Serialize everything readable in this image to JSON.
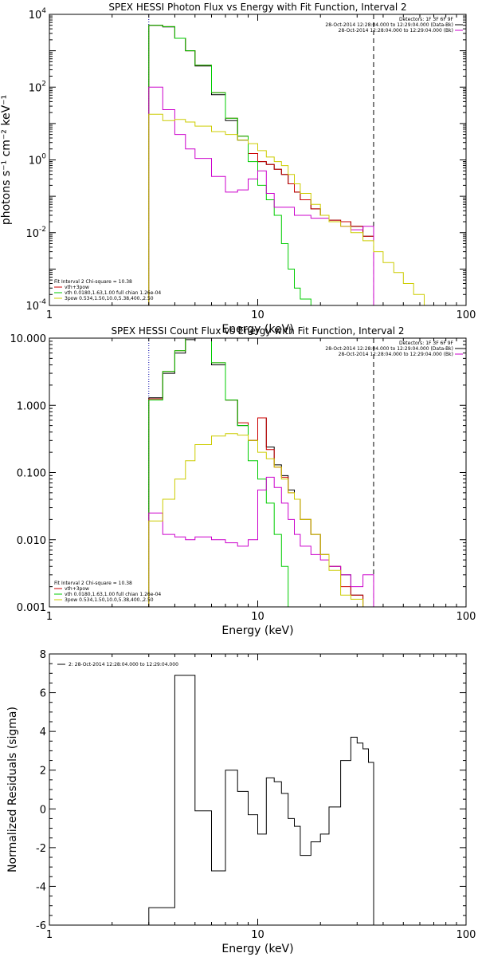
{
  "chart_data": [
    {
      "type": "line",
      "title": "SPEX HESSI Photon Flux vs Energy with Fit Function, Interval 2",
      "xlabel": "Energy (keV)",
      "ylabel": "photons s⁻¹ cm⁻² keV⁻¹",
      "xscale": "log",
      "yscale": "log",
      "xlim": [
        1,
        100
      ],
      "ylim": [
        0.0001,
        10000
      ],
      "x_ticks": [
        {
          "v": 1,
          "label": "1"
        },
        {
          "v": 10,
          "label": "10"
        },
        {
          "v": 100,
          "label": "100"
        }
      ],
      "y_ticks": [
        {
          "v": 0.0001,
          "base": "10",
          "exp": "-4"
        },
        {
          "v": 0.01,
          "base": "10",
          "exp": "-2"
        },
        {
          "v": 1,
          "base": "10",
          "exp": "0"
        },
        {
          "v": 100,
          "base": "10",
          "exp": "2"
        },
        {
          "v": 10000,
          "base": "10",
          "exp": "4"
        }
      ],
      "dashed_vline": 36,
      "dotted_vline": 3,
      "legend_topright": [
        {
          "text": "Detectors: 1F 3F 6F 9F",
          "color": ""
        },
        {
          "text": "28-Oct-2014 12:28:04.000 to 12:29:04.000 (Data-Bk)",
          "color": "#000000"
        },
        {
          "text": "28-Oct-2014 12:28:04.000 to 12:29:04.000 (Bk)",
          "color": "#cc00cc"
        }
      ],
      "legend_bottomleft": [
        {
          "text": "Fit Interval 2   Chi-square = 10.38",
          "color": ""
        },
        {
          "text": "vth+3pow",
          "color": "#cc0000"
        },
        {
          "text": "vth 0.0180,1.63,1.00  full chian 1.26e-04",
          "color": "#00cc00"
        },
        {
          "text": "3pow 0.534,1.50,10.0,5.38,400.,2.50",
          "color": "#cccc00"
        }
      ],
      "bin_edges": [
        3,
        3.5,
        4,
        4.5,
        5,
        6,
        7,
        8,
        9,
        10,
        11,
        12,
        13,
        14,
        15,
        16,
        18,
        20,
        22,
        25,
        28,
        32,
        36
      ],
      "series": [
        {
          "color": "#000000",
          "values": [
            5000,
            4500,
            2200,
            1000,
            380,
            62,
            12,
            3.5,
            1.5,
            0.9,
            0.75,
            0.55,
            0.4,
            0.22,
            0.13,
            0.08,
            0.045,
            0.03,
            0.022,
            0.02,
            0.015,
            0.008
          ]
        },
        {
          "color": "#cc0000",
          "values": [
            5000,
            4600,
            2200,
            1000,
            400,
            70,
            14,
            4.5,
            1.5,
            0.9,
            0.75,
            0.55,
            0.4,
            0.22,
            0.13,
            0.08,
            0.045,
            0.03,
            0.022,
            0.02,
            0.015,
            0.008
          ]
        },
        {
          "color": "#00cc00",
          "values": [
            5000,
            4600,
            2200,
            1000,
            400,
            70,
            14,
            4.5,
            0.9,
            0.2,
            0.08,
            0.03,
            0.005,
            0.001,
            0.0003,
            0.00015
          ]
        },
        {
          "color": "#cc00cc",
          "values": [
            100,
            24,
            5,
            2,
            1.1,
            0.35,
            0.13,
            0.15,
            0.3,
            0.5,
            0.12,
            0.05,
            0.05,
            0.05,
            0.03,
            0.03,
            0.025,
            0.025,
            0.02,
            0.015,
            0.012,
            0.015
          ]
        },
        {
          "color": "#cccc00",
          "bin_edges": [
            3,
            3.5,
            4,
            4.5,
            5,
            6,
            7,
            8,
            9,
            10,
            11,
            12,
            13,
            14,
            15,
            16,
            18,
            20,
            22,
            25,
            28,
            32,
            36,
            40,
            45,
            50,
            56,
            63
          ],
          "values": [
            18,
            12,
            13,
            11,
            8.5,
            6,
            5,
            3.5,
            2.8,
            1.8,
            1.2,
            0.9,
            0.7,
            0.4,
            0.22,
            0.12,
            0.06,
            0.03,
            0.02,
            0.015,
            0.01,
            0.006,
            0.003,
            0.0015,
            0.0008,
            0.0004,
            0.0002
          ]
        }
      ]
    },
    {
      "type": "line",
      "title": "SPEX HESSI Count Flux vs Energy with Fit Function, Interval 2",
      "xlabel": "Energy (keV)",
      "ylabel": "",
      "xscale": "log",
      "yscale": "log",
      "xlim": [
        1,
        100
      ],
      "ylim": [
        0.001,
        10
      ],
      "x_ticks": [
        {
          "v": 1,
          "label": "1"
        },
        {
          "v": 10,
          "label": "10"
        },
        {
          "v": 100,
          "label": "100"
        }
      ],
      "y_ticks": [
        {
          "v": 0.001,
          "label": "0.001"
        },
        {
          "v": 0.01,
          "label": "0.010"
        },
        {
          "v": 0.1,
          "label": "0.100"
        },
        {
          "v": 1,
          "label": "1.000"
        },
        {
          "v": 10,
          "label": "10.000"
        }
      ],
      "dashed_vline": 36,
      "dotted_vline": 3,
      "legend_topright": [
        {
          "text": "Detectors: 1F 3F 6F 9F",
          "color": ""
        },
        {
          "text": "28-Oct-2014 12:28:04.000 to 12:29:04.000 (Data-Bk)",
          "color": "#000000"
        },
        {
          "text": "28-Oct-2014 12:28:04.000 to 12:29:04.000 (Bk)",
          "color": "#cc00cc"
        }
      ],
      "legend_bottomleft": [
        {
          "text": "Fit Interval 2   Chi-square = 10.38",
          "color": ""
        },
        {
          "text": "vth+3pow",
          "color": "#cc0000"
        },
        {
          "text": "vth 0.0180,1.63,1.00  full chian 1.26e-04",
          "color": "#00cc00"
        },
        {
          "text": "3pow 0.534,1.50,10.0,5.38,400.,2.50",
          "color": "#cccc00"
        }
      ],
      "bin_edges": [
        3,
        3.5,
        4,
        4.5,
        5,
        6,
        7,
        8,
        9,
        10,
        11,
        12,
        13,
        14,
        15,
        16,
        18,
        20,
        22,
        25,
        28,
        32,
        36
      ],
      "series": [
        {
          "color": "#000000",
          "values": [
            1.3,
            3,
            6,
            9.5,
            11,
            4,
            1.2,
            0.5,
            0.3,
            0.65,
            0.24,
            0.13,
            0.09,
            0.055,
            0.04,
            0.02,
            0.012,
            0.006,
            0.004,
            0.003,
            0.0015,
            0.001
          ]
        },
        {
          "color": "#cc0000",
          "values": [
            1.25,
            3.2,
            6.5,
            10,
            11.5,
            4.3,
            1.2,
            0.55,
            0.3,
            0.65,
            0.22,
            0.12,
            0.085,
            0.05,
            0.04,
            0.02,
            0.012,
            0.006,
            0.004,
            0.002,
            0.0015,
            0.001
          ]
        },
        {
          "color": "#00cc00",
          "values": [
            1.2,
            3.2,
            6.5,
            10,
            11.5,
            4.3,
            1.2,
            0.5,
            0.15,
            0.08,
            0.035,
            0.012,
            0.004,
            0.001
          ]
        },
        {
          "color": "#cc00cc",
          "values": [
            0.025,
            0.012,
            0.011,
            0.01,
            0.011,
            0.01,
            0.009,
            0.008,
            0.01,
            0.055,
            0.085,
            0.06,
            0.035,
            0.02,
            0.012,
            0.008,
            0.006,
            0.005,
            0.004,
            0.003,
            0.002,
            0.003
          ]
        },
        {
          "color": "#cccc00",
          "values": [
            0.019,
            0.04,
            0.08,
            0.15,
            0.26,
            0.35,
            0.38,
            0.36,
            0.3,
            0.2,
            0.16,
            0.12,
            0.08,
            0.05,
            0.04,
            0.02,
            0.012,
            0.006,
            0.0035,
            0.0015,
            0.0013,
            0.001
          ]
        }
      ]
    },
    {
      "type": "line",
      "title": "",
      "xlabel": "Energy (keV)",
      "ylabel": "Normalized Residuals (sigma)",
      "xscale": "log",
      "yscale": "linear",
      "xlim": [
        1,
        100
      ],
      "ylim": [
        -6,
        8
      ],
      "x_ticks": [
        {
          "v": 1,
          "label": "1"
        },
        {
          "v": 10,
          "label": "10"
        },
        {
          "v": 100,
          "label": "100"
        }
      ],
      "y_ticks": [
        {
          "v": -6,
          "label": "-6"
        },
        {
          "v": -4,
          "label": "-4"
        },
        {
          "v": -2,
          "label": "-2"
        },
        {
          "v": 0,
          "label": "0"
        },
        {
          "v": 2,
          "label": "2"
        },
        {
          "v": 4,
          "label": "4"
        },
        {
          "v": 6,
          "label": "6"
        },
        {
          "v": 8,
          "label": "8"
        }
      ],
      "legend_topleft": [
        {
          "text": "2: 28-Oct-2014 12:28:04.000 to 12:29:04.000",
          "color": "#000000"
        }
      ],
      "bin_edges": [
        3,
        4,
        5,
        6,
        7,
        8,
        9,
        10,
        11,
        12,
        13,
        14,
        15,
        16,
        18,
        20,
        22,
        25,
        28,
        30,
        32,
        34,
        36
      ],
      "series": [
        {
          "color": "#000000",
          "values": [
            -5.1,
            6.9,
            -0.1,
            -3.2,
            2.0,
            0.9,
            -0.3,
            -1.3,
            1.6,
            1.4,
            0.8,
            -0.5,
            -0.9,
            -2.4,
            -1.7,
            -1.3,
            0.1,
            2.5,
            3.7,
            3.4,
            3.1,
            2.4
          ]
        }
      ]
    }
  ]
}
